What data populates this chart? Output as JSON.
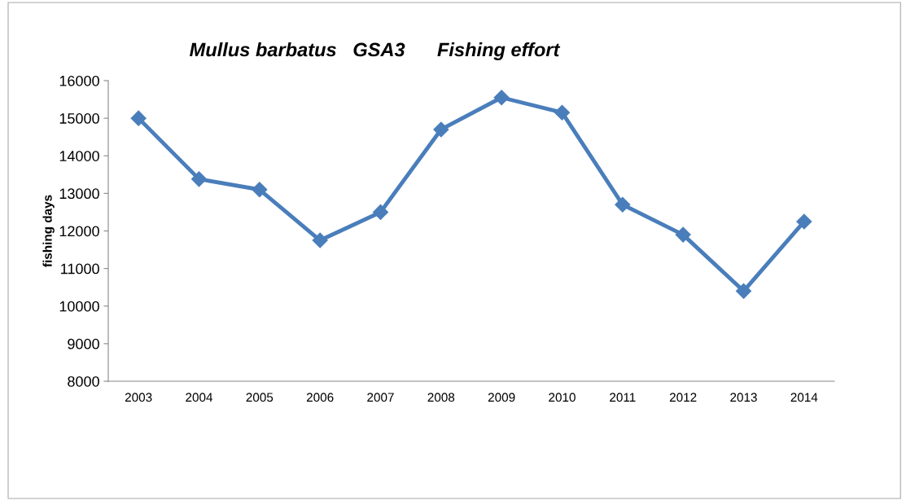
{
  "chart_data": {
    "type": "line",
    "title": "Mullus barbatus   GSA3      Fishing effort",
    "ylabel": "fishing days",
    "categories": [
      "2003",
      "2004",
      "2005",
      "2006",
      "2007",
      "2008",
      "2009",
      "2010",
      "2011",
      "2012",
      "2013",
      "2014"
    ],
    "series": [
      {
        "color": "#4a7ebb",
        "values": [
          15000,
          13380,
          13100,
          11750,
          12500,
          14700,
          15550,
          15150,
          12700,
          11900,
          10400,
          12250
        ]
      }
    ],
    "ylim": [
      8000,
      16000
    ],
    "yticks": [
      8000,
      9000,
      10000,
      11000,
      12000,
      13000,
      14000,
      15000,
      16000
    ],
    "grid": false,
    "legend": false,
    "marker": "diamond",
    "line_style": "solid"
  }
}
